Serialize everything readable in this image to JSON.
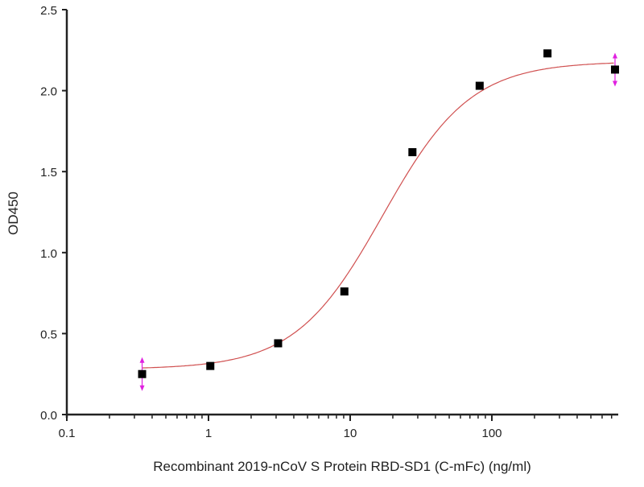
{
  "chart_data": {
    "type": "scatter",
    "title": "",
    "xlabel": "Recombinant 2019-nCoV S Protein RBD-SD1 (C-mFc) (ng/ml)",
    "ylabel": "OD450",
    "xscale": "log",
    "xlim": [
      0.1,
      780
    ],
    "ylim": [
      0,
      2.5
    ],
    "xticks": [
      0.1,
      1,
      10,
      100
    ],
    "xtick_labels": [
      "0.1",
      "1",
      "10",
      "100"
    ],
    "yticks": [
      0,
      0.5,
      1,
      1.5,
      2,
      2.5
    ],
    "ytick_labels": [
      "0.0",
      "0.5",
      "1.0",
      "1.5",
      "2.0",
      "2.5"
    ],
    "grid": false,
    "series": [
      {
        "name": "data",
        "marker": "square",
        "color": "#000000",
        "x": [
          0.34,
          1.03,
          3.1,
          9.1,
          27.5,
          82,
          247,
          740
        ],
        "y": [
          0.25,
          0.3,
          0.44,
          0.76,
          1.62,
          2.03,
          2.23,
          2.13
        ],
        "error_bar_color": "#e020e0",
        "error_bars_on": [
          0,
          7
        ]
      },
      {
        "name": "4PL fit",
        "type": "line",
        "color": "#d05050",
        "fit": {
          "bottom": 0.28,
          "top": 2.18,
          "ec50": 17,
          "hill": 1.4
        }
      }
    ]
  }
}
